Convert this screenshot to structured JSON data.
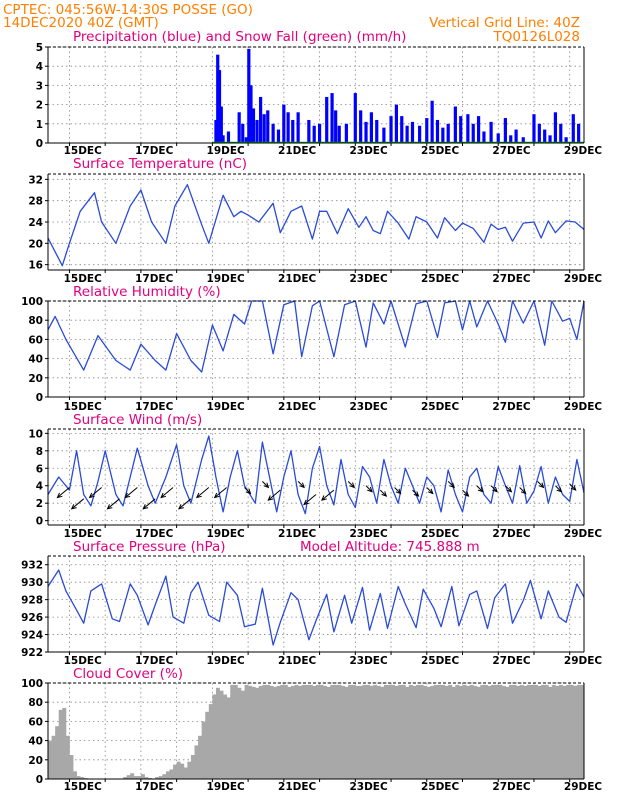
{
  "header": {
    "line1_left": "CPTEC:   045:56W-14:30S   POSSE (GO)",
    "line2_left": "14DEC2020 40Z (GMT)",
    "line2_right": "Vertical Grid Line: 40Z",
    "line3_right": "TQ0126L028"
  },
  "colors": {
    "header": "#ff7f00",
    "panel_title": "#e0007f",
    "precip": "#0000ff",
    "snow": "#00aa00",
    "line": "#2a4bd7",
    "cloud": "#a8a8a8"
  },
  "chart_data": [
    {
      "type": "bar",
      "title": "Precipitation (blue) and Snow Fall (green) (mm/h)",
      "x_ticks": [
        "15DEC",
        "17DEC",
        "19DEC",
        "21DEC",
        "23DEC",
        "25DEC",
        "27DEC",
        "29DEC"
      ],
      "ylim": [
        0,
        5
      ],
      "y_ticks": [
        "0",
        "1",
        "2",
        "3",
        "4",
        "5"
      ],
      "series": [
        {
          "name": "Precipitation",
          "color": "#0000ff",
          "points": [
            [
              18.7,
              1.2
            ],
            [
              18.75,
              4.6
            ],
            [
              18.8,
              3.8
            ],
            [
              18.85,
              1.9
            ],
            [
              18.9,
              0.4
            ],
            [
              19.05,
              0.6
            ],
            [
              19.35,
              1.6
            ],
            [
              19.45,
              1.0
            ],
            [
              19.55,
              0.3
            ],
            [
              19.62,
              4.9
            ],
            [
              19.68,
              3.0
            ],
            [
              19.75,
              1.8
            ],
            [
              19.85,
              1.2
            ],
            [
              19.95,
              2.4
            ],
            [
              20.05,
              1.5
            ],
            [
              20.15,
              1.7
            ],
            [
              20.3,
              1.0
            ],
            [
              20.45,
              0.7
            ],
            [
              20.6,
              2.0
            ],
            [
              20.72,
              1.6
            ],
            [
              20.85,
              1.2
            ],
            [
              21.0,
              1.6
            ],
            [
              21.3,
              1.2
            ],
            [
              21.45,
              0.9
            ],
            [
              21.6,
              1.0
            ],
            [
              21.8,
              2.4
            ],
            [
              21.95,
              2.6
            ],
            [
              22.05,
              1.7
            ],
            [
              22.15,
              0.9
            ],
            [
              22.35,
              1.0
            ],
            [
              22.6,
              2.6
            ],
            [
              22.75,
              1.7
            ],
            [
              22.9,
              1.1
            ],
            [
              23.05,
              1.6
            ],
            [
              23.2,
              1.2
            ],
            [
              23.4,
              0.8
            ],
            [
              23.6,
              1.4
            ],
            [
              23.75,
              2.0
            ],
            [
              23.9,
              1.4
            ],
            [
              24.05,
              0.9
            ],
            [
              24.2,
              1.1
            ],
            [
              24.4,
              0.9
            ],
            [
              24.6,
              1.3
            ],
            [
              24.75,
              2.2
            ],
            [
              24.9,
              1.2
            ],
            [
              25.05,
              0.8
            ],
            [
              25.2,
              1.0
            ],
            [
              25.4,
              1.9
            ],
            [
              25.55,
              1.4
            ],
            [
              25.75,
              1.5
            ],
            [
              25.9,
              1.0
            ],
            [
              26.05,
              1.4
            ],
            [
              26.2,
              0.6
            ],
            [
              26.4,
              1.1
            ],
            [
              26.6,
              0.5
            ],
            [
              26.8,
              1.3
            ],
            [
              26.95,
              0.4
            ],
            [
              27.1,
              0.7
            ],
            [
              27.3,
              0.3
            ],
            [
              27.6,
              1.5
            ],
            [
              27.75,
              1.0
            ],
            [
              27.9,
              0.7
            ],
            [
              28.05,
              0.4
            ],
            [
              28.2,
              1.6
            ],
            [
              28.35,
              1.0
            ],
            [
              28.5,
              0.3
            ],
            [
              28.7,
              1.5
            ],
            [
              28.85,
              1.0
            ]
          ]
        },
        {
          "name": "Snow Fall",
          "color": "#00aa00",
          "points": []
        }
      ]
    },
    {
      "type": "line",
      "title": "Surface Temperature (nC)",
      "x_ticks": [
        "15DEC",
        "17DEC",
        "19DEC",
        "21DEC",
        "23DEC",
        "25DEC",
        "27DEC",
        "29DEC"
      ],
      "ylim": [
        15,
        33
      ],
      "y_ticks": [
        "16",
        "20",
        "24",
        "28",
        "32"
      ],
      "x": [
        14.0,
        14.4,
        14.6,
        14.9,
        15.3,
        15.5,
        15.9,
        16.3,
        16.6,
        16.9,
        17.3,
        17.55,
        17.9,
        18.3,
        18.5,
        18.9,
        19.2,
        19.4,
        19.6,
        19.9,
        20.3,
        20.5,
        20.8,
        21.1,
        21.4,
        21.6,
        21.8,
        22.1,
        22.4,
        22.7,
        22.9,
        23.1,
        23.3,
        23.5,
        23.8,
        24.1,
        24.3,
        24.6,
        24.9,
        25.1,
        25.4,
        25.6,
        25.9,
        26.2,
        26.4,
        26.6,
        26.8,
        27.0,
        27.3,
        27.6,
        27.8,
        28.0,
        28.2,
        28.5,
        28.75,
        29.0
      ],
      "y": [
        21,
        15.8,
        20,
        26,
        29.5,
        24,
        20,
        27,
        30,
        24,
        20,
        27,
        31,
        23.5,
        20,
        29,
        25,
        26,
        25.3,
        24,
        27.5,
        22,
        26,
        27,
        20.8,
        26,
        26,
        21.8,
        26.5,
        23,
        25,
        22.4,
        21.8,
        26,
        23.8,
        20.8,
        25,
        24,
        21,
        24.8,
        22.4,
        23.8,
        22.8,
        20.2,
        23.6,
        22.6,
        23,
        20.4,
        23.8,
        24,
        21,
        24.2,
        22,
        24.2,
        24,
        22.6
      ]
    },
    {
      "type": "line",
      "title": "Relative Humidity (%)",
      "x_ticks": [
        "15DEC",
        "17DEC",
        "19DEC",
        "21DEC",
        "23DEC",
        "25DEC",
        "27DEC",
        "29DEC"
      ],
      "ylim": [
        0,
        100
      ],
      "y_ticks": [
        "0",
        "20",
        "40",
        "60",
        "80",
        "100"
      ],
      "x": [
        14.0,
        14.2,
        14.5,
        15.0,
        15.4,
        15.9,
        16.3,
        16.6,
        17.0,
        17.3,
        17.6,
        18.0,
        18.3,
        18.6,
        18.9,
        19.2,
        19.5,
        19.7,
        20.0,
        20.3,
        20.6,
        20.9,
        21.1,
        21.4,
        21.6,
        22.0,
        22.3,
        22.6,
        22.9,
        23.1,
        23.4,
        23.6,
        24.0,
        24.3,
        24.6,
        24.9,
        25.1,
        25.4,
        25.6,
        25.8,
        26.0,
        26.3,
        26.6,
        26.8,
        27.0,
        27.3,
        27.6,
        27.9,
        28.1,
        28.4,
        28.6,
        28.8,
        29.0
      ],
      "y": [
        70,
        84,
        60,
        28,
        64,
        38,
        28,
        55,
        38,
        28,
        66,
        38,
        26,
        75,
        48,
        86,
        76,
        100,
        100,
        45,
        96,
        100,
        42,
        95,
        100,
        42,
        96,
        100,
        52,
        98,
        76,
        100,
        52,
        97,
        100,
        62,
        98,
        100,
        70,
        100,
        73,
        100,
        76,
        57,
        100,
        77,
        100,
        54,
        100,
        79,
        82,
        60,
        100
      ]
    },
    {
      "type": "line",
      "title": "Surface Wind (m/s)",
      "x_ticks": [
        "15DEC",
        "17DEC",
        "19DEC",
        "21DEC",
        "23DEC",
        "25DEC",
        "27DEC",
        "29DEC"
      ],
      "ylim": [
        -0.5,
        10.5
      ],
      "y_ticks": [
        "0",
        "2",
        "4",
        "6",
        "8",
        "10"
      ],
      "x": [
        14.0,
        14.3,
        14.6,
        14.8,
        15.0,
        15.2,
        15.4,
        15.6,
        15.9,
        16.1,
        16.3,
        16.5,
        16.8,
        17.0,
        17.3,
        17.6,
        17.8,
        18.0,
        18.3,
        18.5,
        18.7,
        18.9,
        19.1,
        19.3,
        19.5,
        19.8,
        20.0,
        20.2,
        20.4,
        20.6,
        20.8,
        21.0,
        21.2,
        21.4,
        21.6,
        21.8,
        22.0,
        22.2,
        22.4,
        22.6,
        22.8,
        23.0,
        23.2,
        23.4,
        23.6,
        23.8,
        24.0,
        24.2,
        24.4,
        24.6,
        24.8,
        25.0,
        25.2,
        25.4,
        25.6,
        25.8,
        26.0,
        26.2,
        26.4,
        26.6,
        26.8,
        27.0,
        27.2,
        27.4,
        27.6,
        27.8,
        28.0,
        28.2,
        28.4,
        28.6,
        28.8,
        29.0
      ],
      "y": [
        3,
        5,
        3.5,
        8,
        3,
        1.7,
        4.5,
        8,
        3,
        1.7,
        5,
        8.3,
        4,
        2,
        5,
        8.7,
        4,
        2,
        7,
        9.7,
        5,
        1,
        5,
        8,
        4,
        2,
        9,
        5,
        1,
        5,
        8,
        3,
        0.8,
        6,
        8.5,
        4,
        1.8,
        7,
        3,
        1.5,
        6.2,
        5,
        2,
        7,
        4,
        2,
        6,
        4,
        2,
        5,
        4,
        1,
        5.8,
        3,
        1,
        5,
        6,
        3,
        2,
        6.2,
        4,
        2,
        6.3,
        2,
        3.4,
        6.2,
        2,
        5,
        3,
        2.2,
        7,
        3.2
      ]
    },
    {
      "type": "line",
      "title": "Surface Pressure (hPa)",
      "annotation": "Model Altitude: 745.888 m",
      "x_ticks": [
        "15DEC",
        "17DEC",
        "19DEC",
        "21DEC",
        "23DEC",
        "25DEC",
        "27DEC",
        "29DEC"
      ],
      "ylim": [
        922,
        933
      ],
      "y_ticks": [
        "922",
        "924",
        "926",
        "928",
        "930",
        "932"
      ],
      "x": [
        14.0,
        14.3,
        14.5,
        14.8,
        15.0,
        15.2,
        15.5,
        15.8,
        16.0,
        16.3,
        16.5,
        16.8,
        17.0,
        17.3,
        17.5,
        17.8,
        18.0,
        18.2,
        18.5,
        18.8,
        19.0,
        19.3,
        19.5,
        19.8,
        20.0,
        20.3,
        20.5,
        20.8,
        21.0,
        21.3,
        21.5,
        21.8,
        22.0,
        22.3,
        22.5,
        22.8,
        23.0,
        23.3,
        23.5,
        23.8,
        24.0,
        24.3,
        24.5,
        24.8,
        25.0,
        25.3,
        25.5,
        25.8,
        26.0,
        26.3,
        26.5,
        26.8,
        27.0,
        27.3,
        27.5,
        27.8,
        28.0,
        28.3,
        28.5,
        28.8,
        29.0
      ],
      "y": [
        929.5,
        931.4,
        929,
        926.8,
        925.3,
        929,
        929.8,
        925.8,
        925.5,
        929.8,
        928.5,
        925.1,
        927.4,
        930.7,
        926,
        925.3,
        928.8,
        930,
        926.2,
        925.5,
        930,
        928.5,
        924.9,
        925.2,
        929.3,
        922.8,
        925.4,
        928.8,
        928,
        923.4,
        925.6,
        928.6,
        924.3,
        928.5,
        925.3,
        929.4,
        924.5,
        928.7,
        924.7,
        929.5,
        927.5,
        924.8,
        929.2,
        927,
        924.9,
        929.5,
        925,
        928.6,
        929,
        924.7,
        928.2,
        929.8,
        925.3,
        927.9,
        930.2,
        925.8,
        929,
        926,
        925.4,
        929.8,
        928.3
      ]
    },
    {
      "type": "bar",
      "title": "Cloud Cover (%)",
      "x_ticks": [
        "15DEC",
        "17DEC",
        "19DEC",
        "21DEC",
        "23DEC",
        "25DEC",
        "27DEC",
        "29DEC"
      ],
      "ylim": [
        0,
        100
      ],
      "y_ticks": [
        "0",
        "20",
        "40",
        "60",
        "80",
        "100"
      ],
      "x": [
        14.0,
        14.1,
        14.2,
        14.3,
        14.4,
        14.5,
        14.6,
        14.7,
        14.8,
        14.9,
        15.0,
        15.1,
        15.2,
        15.3,
        15.4,
        15.5,
        15.6,
        15.7,
        15.8,
        15.9,
        16.0,
        16.1,
        16.2,
        16.3,
        16.4,
        16.5,
        16.6,
        16.7,
        16.8,
        16.9,
        17.0,
        17.1,
        17.2,
        17.3,
        17.4,
        17.5,
        17.6,
        17.7,
        17.8,
        17.9,
        18.0,
        18.1,
        18.2,
        18.3,
        18.4,
        18.5,
        18.6,
        18.7,
        18.8,
        18.9,
        19.0,
        19.1,
        19.2,
        19.3,
        19.4,
        19.5,
        19.6,
        19.7,
        19.8,
        19.9,
        20.0,
        20.1,
        20.2,
        20.3,
        20.4,
        20.5,
        20.6,
        20.7,
        20.8,
        20.9,
        21.0,
        21.1,
        21.2,
        21.3,
        21.4,
        21.5,
        21.6,
        21.7,
        21.8,
        21.9,
        22.0,
        22.1,
        22.2,
        22.3,
        22.4,
        22.5,
        22.6,
        22.7,
        22.8,
        22.9,
        23.0,
        23.1,
        23.2,
        23.3,
        23.4,
        23.5,
        23.6,
        23.7,
        23.8,
        23.9,
        24.0,
        24.1,
        24.2,
        24.3,
        24.4,
        24.5,
        24.6,
        24.7,
        24.8,
        24.9,
        25.0,
        25.1,
        25.2,
        25.3,
        25.4,
        25.5,
        25.6,
        25.7,
        25.8,
        25.9,
        26.0,
        26.1,
        26.2,
        26.3,
        26.4,
        26.5,
        26.6,
        26.7,
        26.8,
        26.9,
        27.0,
        27.1,
        27.2,
        27.3,
        27.4,
        27.5,
        27.6,
        27.7,
        27.8,
        27.9,
        28.0,
        28.1,
        28.2,
        28.3,
        28.4,
        28.5,
        28.6,
        28.7,
        28.8,
        28.9
      ],
      "values": [
        40,
        45,
        55,
        72,
        74,
        45,
        25,
        8,
        3,
        2,
        1,
        0,
        0,
        0,
        0,
        0,
        0,
        0,
        0,
        0,
        0,
        2,
        4,
        6,
        3,
        3,
        5,
        2,
        1,
        0,
        2,
        3,
        5,
        8,
        10,
        15,
        18,
        16,
        12,
        18,
        25,
        35,
        45,
        60,
        70,
        78,
        88,
        95,
        92,
        88,
        85,
        98,
        98,
        95,
        92,
        98,
        97,
        96,
        95,
        97,
        98,
        98,
        97,
        96,
        97,
        98,
        98,
        96,
        97,
        98,
        97,
        98,
        98,
        98,
        97,
        98,
        98,
        97,
        96,
        98,
        98,
        98,
        97,
        96,
        98,
        98,
        97,
        97,
        98,
        98,
        97,
        98,
        97,
        96,
        98,
        98,
        98,
        97,
        98,
        98,
        96,
        98,
        97,
        98,
        98,
        97,
        96,
        97,
        98,
        98,
        98,
        97,
        98,
        96,
        98,
        97,
        98,
        97,
        98,
        97,
        96,
        98,
        98,
        97,
        98,
        98,
        98,
        97,
        96,
        98,
        98,
        97,
        98,
        97,
        98,
        98,
        98,
        97,
        98,
        98,
        96,
        98,
        97,
        98,
        97,
        98,
        98,
        97,
        98,
        98
      ]
    }
  ]
}
